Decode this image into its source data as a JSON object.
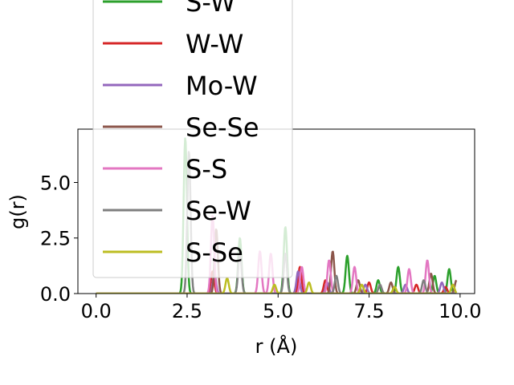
{
  "chart_data": {
    "type": "line",
    "title": "",
    "xlabel": "r (Å)",
    "ylabel": "g(r)",
    "xlim": [
      -0.5,
      10.4
    ],
    "ylim": [
      0,
      7.4
    ],
    "xticks": [
      "0.0",
      "2.5",
      "5.0",
      "7.5",
      "10.0"
    ],
    "xtick_values": [
      0,
      2.5,
      5.0,
      7.5,
      10.0
    ],
    "yticks": [
      "0.0",
      "2.5",
      "5.0"
    ],
    "ytick_values": [
      0,
      2.5,
      5.0
    ],
    "grid": false,
    "legend_placement": "upper-left (partly above plot)",
    "series": [
      {
        "name": "S-W",
        "color": "#2ca02c",
        "peaks": [
          [
            2.45,
            7.0
          ],
          [
            3.95,
            2.5
          ],
          [
            5.2,
            3.0
          ],
          [
            6.9,
            1.7
          ],
          [
            7.75,
            0.6
          ],
          [
            8.3,
            1.2
          ],
          [
            9.3,
            0.8
          ],
          [
            9.7,
            1.1
          ]
        ]
      },
      {
        "name": "W-W",
        "color": "#d62728",
        "peaks": [
          [
            3.2,
            1.0
          ],
          [
            5.6,
            1.2
          ],
          [
            6.3,
            0.6
          ],
          [
            7.5,
            0.5
          ],
          [
            8.8,
            0.4
          ],
          [
            9.6,
            0.3
          ]
        ]
      },
      {
        "name": "Mo-W",
        "color": "#9467bd",
        "peaks": [
          [
            3.25,
            0.9
          ],
          [
            5.55,
            1.0
          ],
          [
            6.35,
            0.5
          ],
          [
            7.4,
            0.4
          ],
          [
            8.5,
            0.4
          ],
          [
            9.5,
            0.5
          ]
        ]
      },
      {
        "name": "Se-Se",
        "color": "#8c564b",
        "peaks": [
          [
            3.3,
            2.9
          ],
          [
            6.5,
            1.9
          ],
          [
            7.2,
            0.6
          ],
          [
            8.1,
            0.5
          ],
          [
            9.2,
            0.9
          ],
          [
            9.9,
            0.6
          ]
        ]
      },
      {
        "name": "S-S",
        "color": "#e377c2",
        "peaks": [
          [
            3.2,
            3.5
          ],
          [
            4.5,
            1.9
          ],
          [
            4.8,
            1.8
          ],
          [
            5.65,
            1.2
          ],
          [
            6.4,
            1.5
          ],
          [
            7.1,
            1.2
          ],
          [
            8.6,
            1.1
          ],
          [
            9.1,
            1.5
          ]
        ]
      },
      {
        "name": "Se-W",
        "color": "#7f7f7f",
        "peaks": [
          [
            2.55,
            6.4
          ],
          [
            3.95,
            1.9
          ],
          [
            5.2,
            1.8
          ],
          [
            6.6,
            0.8
          ],
          [
            7.8,
            0.4
          ],
          [
            9.0,
            0.6
          ]
        ]
      },
      {
        "name": "S-Se",
        "color": "#bcbd22",
        "peaks": [
          [
            3.6,
            0.7
          ],
          [
            4.9,
            0.4
          ],
          [
            5.85,
            0.5
          ],
          [
            7.3,
            0.4
          ],
          [
            8.2,
            0.3
          ],
          [
            9.8,
            0.4
          ]
        ]
      }
    ]
  }
}
